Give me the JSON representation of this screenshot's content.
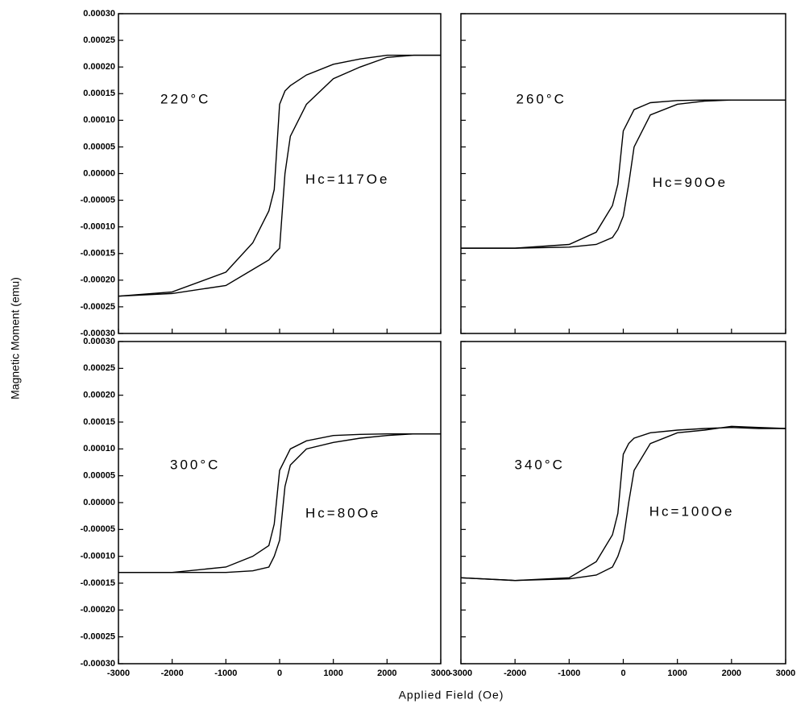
{
  "ylabel": "Magnetic Moment (emu)",
  "xlabel": "Applied Field (Oe)",
  "chart_data": [
    {
      "type": "line",
      "annotations": [
        "220°C",
        "Hc=117Oe"
      ],
      "x": [
        -3000,
        -2000,
        -1000,
        -500,
        -200,
        -100,
        0,
        100,
        200,
        500,
        1000,
        1500,
        2000,
        2500,
        3000
      ],
      "series": [
        {
          "color": "#000000",
          "values": [
            -0.00023,
            -0.000222,
            -0.000185,
            -0.00013,
            -7e-05,
            -3e-05,
            0.00013,
            0.000155,
            0.000165,
            0.000185,
            0.000205,
            0.000215,
            0.000222,
            0.000222,
            0.000222
          ]
        },
        {
          "color": "#000000",
          "values": [
            -0.00023,
            -0.000225,
            -0.00021,
            -0.00018,
            -0.000162,
            -0.00015,
            -0.00014,
            0.0,
            7e-05,
            0.00013,
            0.000178,
            0.0002,
            0.000218,
            0.000222,
            0.000222
          ]
        }
      ],
      "xlim": [
        -3000,
        3000
      ],
      "xticks": [
        -3000,
        -2000,
        -1000,
        0,
        1000,
        2000,
        3000
      ],
      "xtick_labels": false,
      "ylim": [
        -0.0003,
        0.0003
      ],
      "ytick_labels": true,
      "yticks": [
        {
          "value": 0.0003,
          "label": "0.00030"
        },
        {
          "value": 0.00025,
          "label": "0.00025"
        },
        {
          "value": 0.0002,
          "label": "0.00020"
        },
        {
          "value": 0.00015,
          "label": "0.00015"
        },
        {
          "value": 0.0001,
          "label": "0.00010"
        },
        {
          "value": 5e-05,
          "label": "0.00005"
        },
        {
          "value": 0,
          "label": "0.00000"
        },
        {
          "value": -5e-05,
          "label": "-0.00005"
        },
        {
          "value": -0.0001,
          "label": "-0.00010"
        },
        {
          "value": -0.00015,
          "label": "-0.00015"
        },
        {
          "value": -0.0002,
          "label": "-0.00020"
        },
        {
          "value": -0.00025,
          "label": "-0.00025"
        },
        {
          "value": -0.0003,
          "label": "-0.00030"
        }
      ]
    },
    {
      "type": "line",
      "annotations": [
        "260°C",
        "Hc=90Oe"
      ],
      "x": [
        -3000,
        -2000,
        -1000,
        -500,
        -200,
        -100,
        0,
        100,
        200,
        500,
        1000,
        1500,
        2000,
        2500,
        3000
      ],
      "series": [
        {
          "color": "#000000",
          "values": [
            -0.00014,
            -0.00014,
            -0.000133,
            -0.00011,
            -6e-05,
            -2e-05,
            8e-05,
            0.0001,
            0.00012,
            0.000133,
            0.000137,
            0.000138,
            0.000138,
            0.000138,
            0.000138
          ]
        },
        {
          "color": "#000000",
          "values": [
            -0.00014,
            -0.00014,
            -0.000138,
            -0.000133,
            -0.00012,
            -0.000105,
            -8e-05,
            -2e-05,
            5e-05,
            0.00011,
            0.00013,
            0.000136,
            0.000138,
            0.000138,
            0.000138
          ]
        }
      ],
      "xlim": [
        -3000,
        3000
      ],
      "xticks": [
        -3000,
        -2000,
        -1000,
        0,
        1000,
        2000,
        3000
      ],
      "xtick_labels": false,
      "ylim": [
        -0.0003,
        0.0003
      ],
      "ytick_labels": false,
      "yticks": [
        0.0003,
        0.00025,
        0.0002,
        0.00015,
        0.0001,
        5e-05,
        0,
        -5e-05,
        -0.0001,
        -0.00015,
        -0.0002,
        -0.00025,
        -0.0003
      ]
    },
    {
      "type": "line",
      "annotations": [
        "300°C",
        "Hc=80Oe"
      ],
      "x": [
        -3000,
        -2000,
        -1000,
        -500,
        -200,
        -100,
        0,
        100,
        200,
        500,
        1000,
        1500,
        2000,
        2500,
        3000
      ],
      "series": [
        {
          "color": "#000000",
          "values": [
            -0.00013,
            -0.00013,
            -0.00012,
            -0.0001,
            -8e-05,
            -4e-05,
            6e-05,
            8e-05,
            0.0001,
            0.000115,
            0.000125,
            0.000127,
            0.000128,
            0.000128,
            0.000128
          ]
        },
        {
          "color": "#000000",
          "values": [
            -0.00013,
            -0.00013,
            -0.00013,
            -0.000127,
            -0.00012,
            -0.0001,
            -7e-05,
            3e-05,
            7e-05,
            0.0001,
            0.000112,
            0.00012,
            0.000125,
            0.000128,
            0.000128
          ]
        }
      ],
      "xlim": [
        -3000,
        3000
      ],
      "xticks": [
        -3000,
        -2000,
        -1000,
        0,
        1000,
        2000,
        3000
      ],
      "xtick_labels": true,
      "ylim": [
        -0.0003,
        0.0003
      ],
      "ytick_labels": true,
      "yticks": [
        {
          "value": 0.0003,
          "label": "0.00030"
        },
        {
          "value": 0.00025,
          "label": "0.00025"
        },
        {
          "value": 0.0002,
          "label": "0.00020"
        },
        {
          "value": 0.00015,
          "label": "0.00015"
        },
        {
          "value": 0.0001,
          "label": "0.00010"
        },
        {
          "value": 5e-05,
          "label": "0.00005"
        },
        {
          "value": 0,
          "label": "0.00000"
        },
        {
          "value": -5e-05,
          "label": "-0.00005"
        },
        {
          "value": -0.0001,
          "label": "-0.00010"
        },
        {
          "value": -0.00015,
          "label": "-0.00015"
        },
        {
          "value": -0.0002,
          "label": "-0.00020"
        },
        {
          "value": -0.00025,
          "label": "-0.00025"
        },
        {
          "value": -0.0003,
          "label": "-0.00030"
        }
      ]
    },
    {
      "type": "line",
      "annotations": [
        "340°C",
        "Hc=100Oe"
      ],
      "x": [
        -3000,
        -2000,
        -1000,
        -500,
        -200,
        -100,
        0,
        100,
        200,
        500,
        1000,
        1500,
        2000,
        2500,
        3000
      ],
      "series": [
        {
          "color": "#000000",
          "values": [
            -0.00014,
            -0.000145,
            -0.00014,
            -0.00011,
            -6e-05,
            -2e-05,
            9e-05,
            0.00011,
            0.00012,
            0.00013,
            0.000135,
            0.000138,
            0.00014,
            0.000138,
            0.000138
          ]
        },
        {
          "color": "#000000",
          "values": [
            -0.00014,
            -0.000145,
            -0.000142,
            -0.000135,
            -0.00012,
            -0.0001,
            -7e-05,
            0.0,
            6e-05,
            0.00011,
            0.00013,
            0.000135,
            0.000142,
            0.00014,
            0.000138
          ]
        }
      ],
      "xlim": [
        -3000,
        3000
      ],
      "xticks": [
        -3000,
        -2000,
        -1000,
        0,
        1000,
        2000,
        3000
      ],
      "xtick_labels": true,
      "ylim": [
        -0.0003,
        0.0003
      ],
      "ytick_labels": false,
      "yticks": [
        0.0003,
        0.00025,
        0.0002,
        0.00015,
        0.0001,
        5e-05,
        0,
        -5e-05,
        -0.0001,
        -0.00015,
        -0.0002,
        -0.00025,
        -0.0003
      ]
    }
  ]
}
